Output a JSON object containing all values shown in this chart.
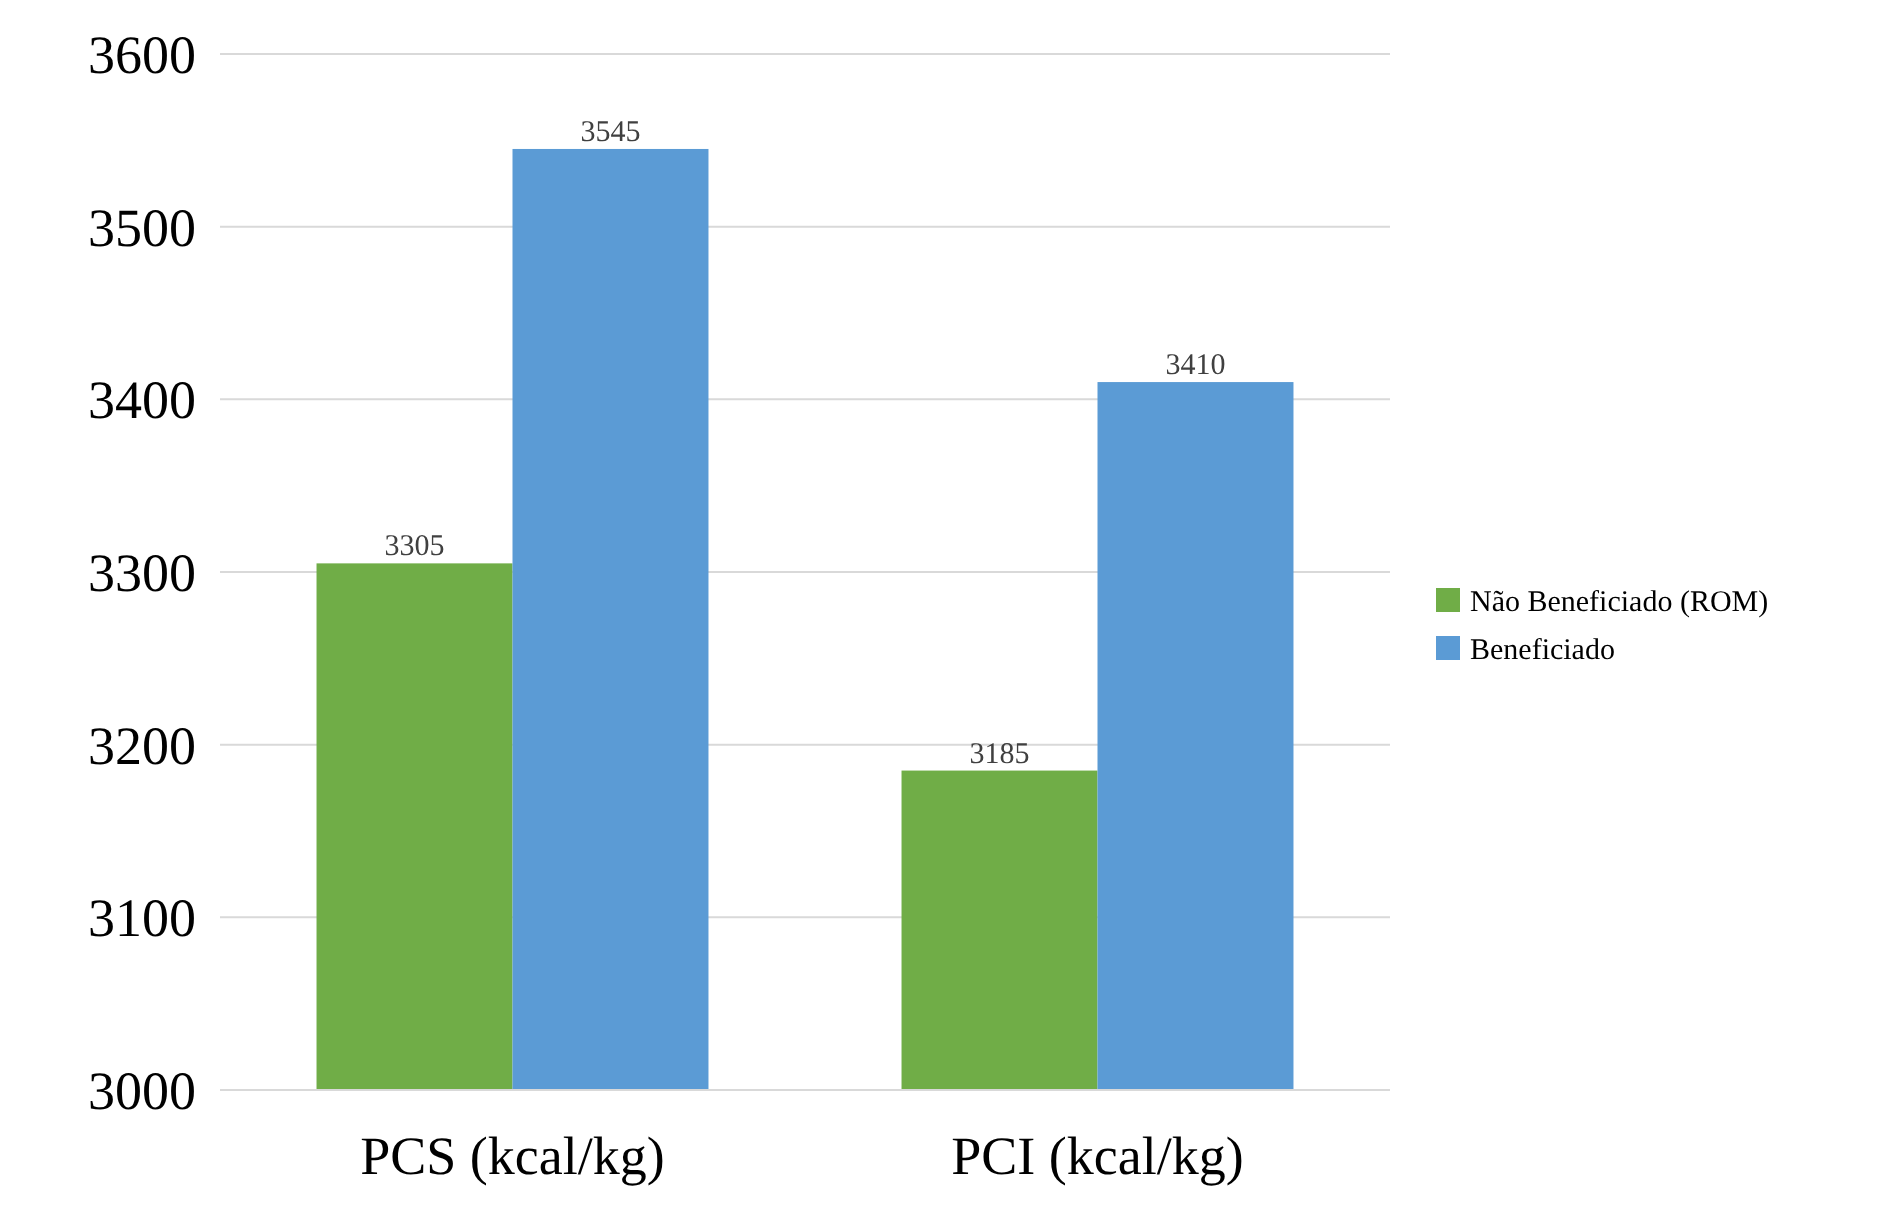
{
  "chart_data": {
    "type": "bar",
    "categories": [
      "PCS (kcal/kg)",
      "PCI (kcal/kg)"
    ],
    "series": [
      {
        "name": "Não Beneficiado (ROM)",
        "color": "#70ad47",
        "values": [
          3305,
          3185
        ]
      },
      {
        "name": "Beneficiado",
        "color": "#5b9bd5",
        "values": [
          3545,
          3410
        ]
      }
    ],
    "ylim": [
      3000,
      3600
    ],
    "yticks": [
      3000,
      3100,
      3200,
      3300,
      3400,
      3500,
      3600
    ],
    "grid": "y",
    "legend": "right",
    "data_labels": true
  }
}
